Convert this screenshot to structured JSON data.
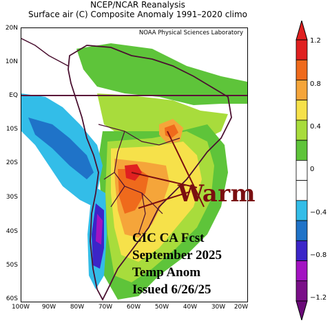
{
  "title": {
    "line1": "NCEP/NCAR Reanalysis",
    "line2": "Surface air (C) Composite Anomaly 1991–2020 climo"
  },
  "credit": "NOAA Physical Sciences Laboratory",
  "lat_ticks": [
    "20N",
    "10N",
    "EQ",
    "10S",
    "20S",
    "30S",
    "40S",
    "50S",
    "60S"
  ],
  "lon_ticks": [
    "100W",
    "90W",
    "80W",
    "70W",
    "60W",
    "50W",
    "40W",
    "30W",
    "20W"
  ],
  "annotation": {
    "warm": "Warm",
    "forecast_lines": [
      "CIC CA Fcst",
      "September 2025",
      "Temp Anom",
      "Issued 6/26/25"
    ]
  },
  "colorbar": {
    "labels": [
      "1.2",
      "0.8",
      "0.4",
      "0",
      "−0.4",
      "−0.8",
      "−1.2"
    ],
    "colors": [
      "#e02020",
      "#ef6a1c",
      "#f5a53a",
      "#f6e14a",
      "#a8dc3c",
      "#5ec43a",
      "#ffffff",
      "#ffffff",
      "#33bde8",
      "#1f73c8",
      "#3b25c8",
      "#a313c2",
      "#7a0f88"
    ],
    "tip_top_color": "#e02020",
    "tip_bottom_color": "#6a0a78"
  },
  "colors": {
    "warm_text": "#7a0e10",
    "equator_line": "#5a1038",
    "coastline": "#4a1030"
  }
}
